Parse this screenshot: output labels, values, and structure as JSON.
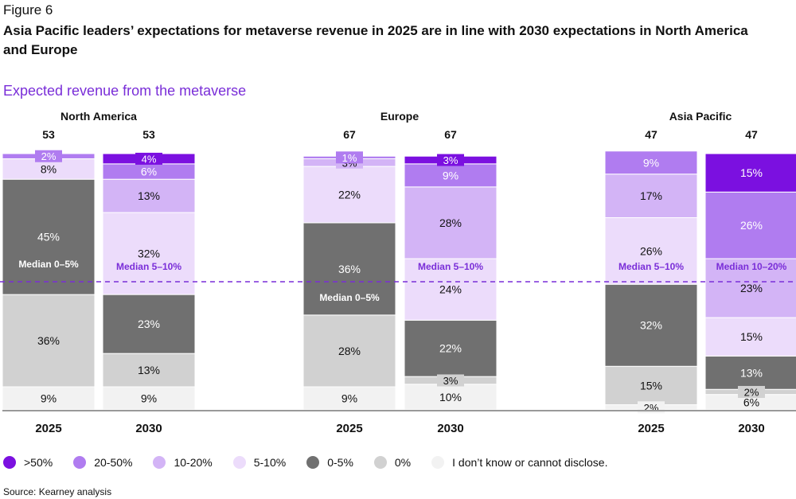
{
  "figure_label": "Figure 6",
  "title": "Asia Pacific leaders’ expectations for metaverse revenue in 2025 are in line with 2030 expectations in North America and Europe",
  "subtitle": "Expected revenue from the metaverse",
  "source": "Source: Kearney analysis",
  "chart_data": {
    "type": "bar",
    "stacked": true,
    "unit": "%",
    "ylim": [
      0,
      100
    ],
    "median_line": "dashed",
    "categories_order": [
      ">50%",
      "20-50%",
      "10-20%",
      "5-10%",
      "0-5%",
      "0%",
      "I don’t know or cannot disclose."
    ],
    "colors": {
      ">50%": "#7b10e0",
      "20-50%": "#b07cf0",
      "10-20%": "#d3b4f6",
      "5-10%": "#ecdcfb",
      "0-5%": "#707070",
      "0%": "#d1d1d1",
      "I don’t know or cannot disclose.": "#f2f2f2"
    },
    "regions": [
      {
        "name": "North America",
        "bars": [
          {
            "year": "2025",
            "n": "53",
            "median": "Median 0–5%",
            "values": [
              0,
              2,
              0,
              8,
              45,
              36,
              9
            ]
          },
          {
            "year": "2030",
            "n": "53",
            "median": "Median 5–10%",
            "values": [
              4,
              6,
              13,
              32,
              23,
              13,
              9
            ]
          }
        ]
      },
      {
        "name": "Europe",
        "bars": [
          {
            "year": "2025",
            "n": "67",
            "median": "Median 0–5%",
            "values": [
              0,
              1,
              3,
              22,
              36,
              28,
              9
            ]
          },
          {
            "year": "2030",
            "n": "67",
            "median": "Median 5–10%",
            "values": [
              3,
              9,
              28,
              24,
              22,
              3,
              10
            ]
          }
        ]
      },
      {
        "name": "Asia Pacific",
        "bars": [
          {
            "year": "2025",
            "n": "47",
            "median": "Median 5–10%",
            "values": [
              0,
              9,
              17,
              26,
              32,
              15,
              2
            ]
          },
          {
            "year": "2030",
            "n": "47",
            "median": "Median 10–20%",
            "values": [
              15,
              26,
              23,
              15,
              13,
              2,
              6
            ]
          }
        ]
      }
    ]
  }
}
